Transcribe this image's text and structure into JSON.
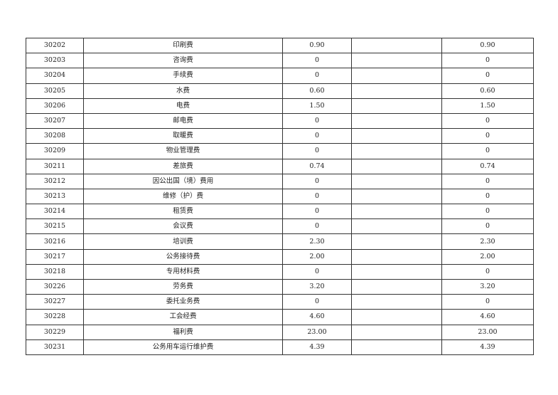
{
  "rows": [
    {
      "code": "30202",
      "name": "印刷费",
      "col3": "0.90",
      "col4": "",
      "col5": "0.90"
    },
    {
      "code": "30203",
      "name": "咨询费",
      "col3": "0",
      "col4": "",
      "col5": "0"
    },
    {
      "code": "30204",
      "name": "手续费",
      "col3": "0",
      "col4": "",
      "col5": "0"
    },
    {
      "code": "30205",
      "name": "水费",
      "col3": "0.60",
      "col4": "",
      "col5": "0.60"
    },
    {
      "code": "30206",
      "name": "电费",
      "col3": "1.50",
      "col4": "",
      "col5": "1.50"
    },
    {
      "code": "30207",
      "name": "邮电费",
      "col3": "0",
      "col4": "",
      "col5": "0"
    },
    {
      "code": "30208",
      "name": "取暖费",
      "col3": "0",
      "col4": "",
      "col5": "0"
    },
    {
      "code": "30209",
      "name": "物业管理费",
      "col3": "0",
      "col4": "",
      "col5": "0"
    },
    {
      "code": "30211",
      "name": "差旅费",
      "col3": "0.74",
      "col4": "",
      "col5": "0.74"
    },
    {
      "code": "30212",
      "name": "因公出国（境）费用",
      "col3": "0",
      "col4": "",
      "col5": "0"
    },
    {
      "code": "30213",
      "name": "维修（护）费",
      "col3": "0",
      "col4": "",
      "col5": "0"
    },
    {
      "code": "30214",
      "name": "租赁费",
      "col3": "0",
      "col4": "",
      "col5": "0"
    },
    {
      "code": "30215",
      "name": "会议费",
      "col3": "0",
      "col4": "",
      "col5": "0"
    },
    {
      "code": "30216",
      "name": "培训费",
      "col3": "2.30",
      "col4": "",
      "col5": "2.30"
    },
    {
      "code": "30217",
      "name": "公务接待费",
      "col3": "2.00",
      "col4": "",
      "col5": "2.00"
    },
    {
      "code": "30218",
      "name": "专用材料费",
      "col3": "0",
      "col4": "",
      "col5": "0"
    },
    {
      "code": "30226",
      "name": "劳务费",
      "col3": "3.20",
      "col4": "",
      "col5": "3.20"
    },
    {
      "code": "30227",
      "name": "委托业务费",
      "col3": "0",
      "col4": "",
      "col5": "0"
    },
    {
      "code": "30228",
      "name": "工会经费",
      "col3": "4.60",
      "col4": "",
      "col5": "4.60"
    },
    {
      "code": "30229",
      "name": "福利费",
      "col3": "23.00",
      "col4": "",
      "col5": "23.00"
    },
    {
      "code": "30231",
      "name": "公务用车运行维护费",
      "col3": "4.39",
      "col4": "",
      "col5": "4.39"
    }
  ]
}
